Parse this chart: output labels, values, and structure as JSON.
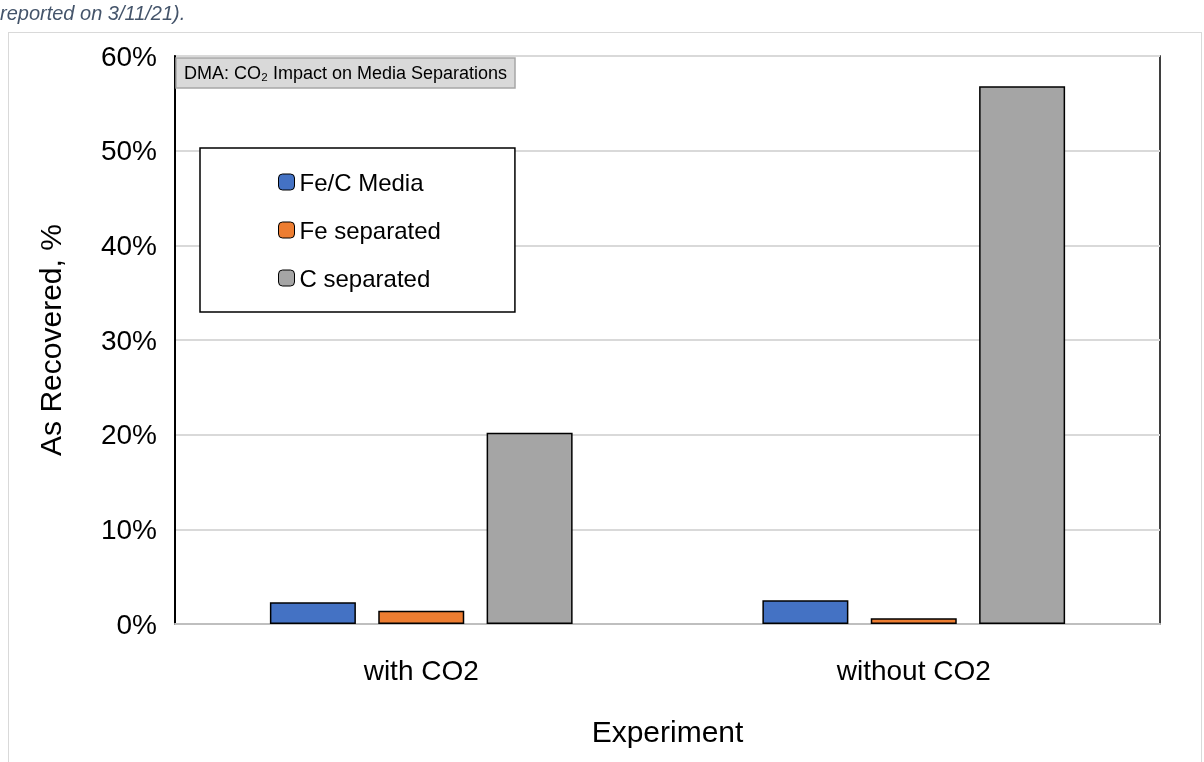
{
  "chart_data": {
    "type": "bar",
    "title": "DMA: CO₂ Impact on Media Separations",
    "xlabel": "Experiment",
    "ylabel": "As Recovered, %",
    "annotations": [
      "reported on 3/11/21)."
    ],
    "categories": [
      "with CO2",
      "without CO2"
    ],
    "series": [
      {
        "name": "Fe/C Media",
        "color": "#4472c4",
        "values": [
          2.3,
          2.5
        ]
      },
      {
        "name": "Fe separated",
        "color": "#ed7d31",
        "values": [
          1.4,
          0.6
        ]
      },
      {
        "name": "C separated",
        "color": "#a5a5a5",
        "values": [
          20.2,
          56.8
        ]
      }
    ],
    "ylim": [
      0,
      60
    ],
    "yticks": [
      {
        "value": 0,
        "label": "0%"
      },
      {
        "value": 10,
        "label": "10%"
      },
      {
        "value": 20,
        "label": "20%"
      },
      {
        "value": 30,
        "label": "30%"
      },
      {
        "value": 40,
        "label": "40%"
      },
      {
        "value": 50,
        "label": "50%"
      },
      {
        "value": 60,
        "label": "60%"
      }
    ],
    "grid": "y",
    "legend": "top left"
  }
}
